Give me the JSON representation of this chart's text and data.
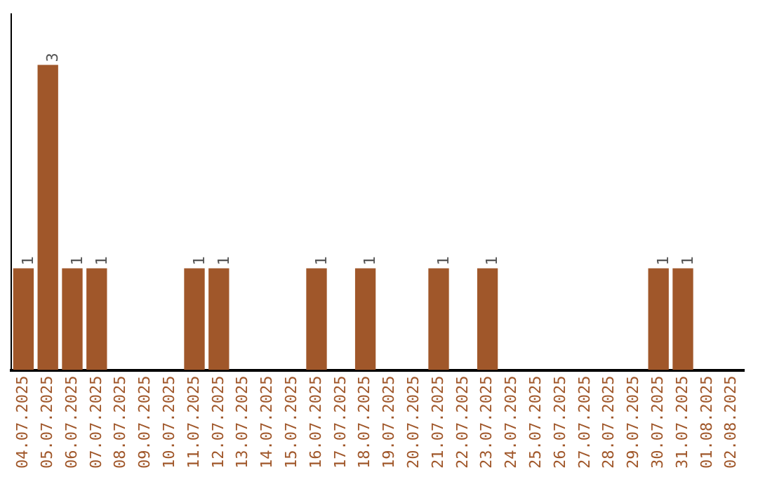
{
  "chart_data": {
    "type": "bar",
    "categories": [
      "04.07.2025",
      "05.07.2025",
      "06.07.2025",
      "07.07.2025",
      "08.07.2025",
      "09.07.2025",
      "10.07.2025",
      "11.07.2025",
      "12.07.2025",
      "13.07.2025",
      "14.07.2025",
      "15.07.2025",
      "16.07.2025",
      "17.07.2025",
      "18.07.2025",
      "19.07.2025",
      "20.07.2025",
      "21.07.2025",
      "22.07.2025",
      "23.07.2025",
      "24.07.2025",
      "25.07.2025",
      "26.07.2025",
      "27.07.2025",
      "28.07.2025",
      "29.07.2025",
      "30.07.2025",
      "31.07.2025",
      "01.08.2025",
      "02.08.2025"
    ],
    "values": [
      1,
      3,
      1,
      1,
      0,
      0,
      0,
      1,
      1,
      0,
      0,
      0,
      1,
      0,
      1,
      0,
      0,
      1,
      0,
      1,
      0,
      0,
      0,
      0,
      0,
      0,
      1,
      1,
      0,
      0
    ],
    "value_labels": [
      "1",
      "3",
      "1",
      "1",
      null,
      null,
      null,
      "1",
      "1",
      null,
      null,
      null,
      "1",
      null,
      "1",
      null,
      null,
      "1",
      null,
      "1",
      null,
      null,
      null,
      null,
      null,
      null,
      "1",
      "1",
      null,
      null
    ],
    "color": "#a0572a",
    "grid": false,
    "legend": false,
    "tick_labels": "x"
  }
}
